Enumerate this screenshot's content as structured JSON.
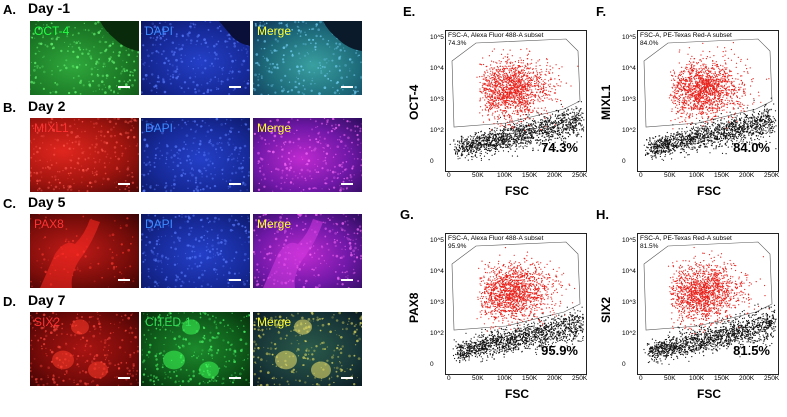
{
  "left_rows": [
    {
      "letter": "A.",
      "day": "Day -1",
      "tiles": [
        {
          "label": "OCT-4",
          "label_color": "#22ff44",
          "kind": "green"
        },
        {
          "label": "DAPI",
          "label_color": "#3b8bff",
          "kind": "blue"
        },
        {
          "label": "Merge",
          "label_color": "#ffff33",
          "kind": "merge-gb"
        }
      ]
    },
    {
      "letter": "B.",
      "day": "Day 2",
      "tiles": [
        {
          "label": "MIXL1",
          "label_color": "#ff3333",
          "kind": "red"
        },
        {
          "label": "DAPI",
          "label_color": "#3b8bff",
          "kind": "blue"
        },
        {
          "label": "Merge",
          "label_color": "#ffff33",
          "kind": "merge-rb"
        }
      ]
    },
    {
      "letter": "C.",
      "day": "Day 5",
      "tiles": [
        {
          "label": "PAX8",
          "label_color": "#ff3333",
          "kind": "red-sparse"
        },
        {
          "label": "DAPI",
          "label_color": "#3b8bff",
          "kind": "blue"
        },
        {
          "label": "Merge",
          "label_color": "#ffff33",
          "kind": "merge-rb"
        }
      ]
    },
    {
      "letter": "D.",
      "day": "Day 7",
      "tiles": [
        {
          "label": "SIX2",
          "label_color": "#ff3333",
          "kind": "red-blobs"
        },
        {
          "label": "CITED-1",
          "label_color": "#33dd55",
          "kind": "green-blobs"
        },
        {
          "label": "Merge",
          "label_color": "#ffff33",
          "kind": "merge-yellow"
        }
      ]
    }
  ],
  "chart_data": [
    {
      "type": "scatter",
      "panel": "E.",
      "ylabel": "OCT-4",
      "xlabel": "FSC",
      "subset": "FSC-A, Alexa Fluor 488-A subset",
      "subset_pct": "74.3%",
      "percent_label": "74.3%",
      "xticks": [
        "0",
        "50K",
        "100K",
        "150K",
        "200K",
        "250K"
      ],
      "yticks": [
        "10^5",
        "10^4",
        "10^3",
        "10^2",
        "0"
      ]
    },
    {
      "type": "scatter",
      "panel": "F.",
      "ylabel": "MIXL1",
      "xlabel": "FSC",
      "subset": "FSC-A, PE-Texas Red-A subset",
      "subset_pct": "84.0%",
      "percent_label": "84.0%",
      "xticks": [
        "0",
        "50K",
        "100K",
        "150K",
        "200K",
        "250K"
      ],
      "yticks": [
        "10^5",
        "10^4",
        "10^3",
        "10^2",
        "0"
      ]
    },
    {
      "type": "scatter",
      "panel": "G.",
      "ylabel": "PAX8",
      "xlabel": "FSC",
      "subset": "FSC-A, Alexa Fluor 488-A subset",
      "subset_pct": "95.9%",
      "percent_label": "95.9%",
      "xticks": [
        "0",
        "50K",
        "100K",
        "150K",
        "200K",
        "250K"
      ],
      "yticks": [
        "10^5",
        "10^4",
        "10^3",
        "10^2",
        "0"
      ]
    },
    {
      "type": "scatter",
      "panel": "H.",
      "ylabel": "SIX2",
      "xlabel": "FSC",
      "subset": "FSC-A, PE-Texas Red-A subset",
      "subset_pct": "81.5%",
      "percent_label": "81.5%",
      "xticks": [
        "0",
        "50K",
        "100K",
        "150K",
        "200K",
        "250K"
      ],
      "yticks": [
        "10^5",
        "10^4",
        "10^3",
        "10^2",
        "0"
      ]
    }
  ]
}
